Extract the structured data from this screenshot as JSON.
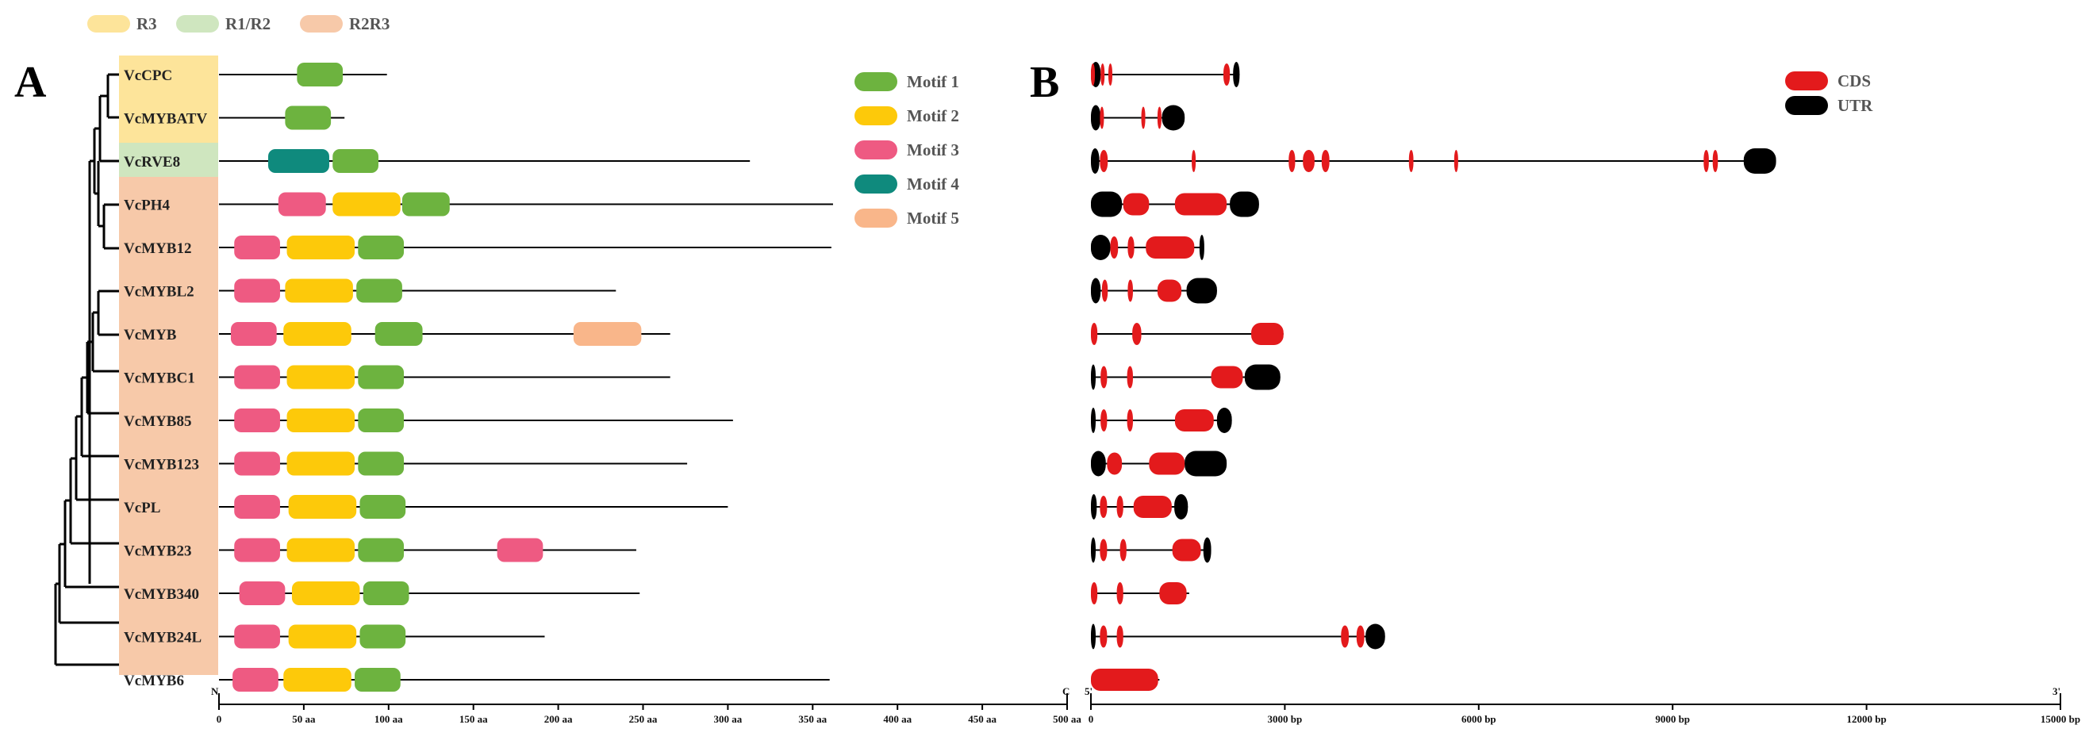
{
  "group_legend": [
    {
      "label": "R3",
      "color": "#fde49a"
    },
    {
      "label": "R1/R2",
      "color": "#cfe6bf"
    },
    {
      "label": "R2R3",
      "color": "#f7c9a9"
    }
  ],
  "panel_a_label": "A",
  "panel_b_label": "B",
  "motif_legend": [
    {
      "label": "Motif 1",
      "color": "#6db33f"
    },
    {
      "label": "Motif 2",
      "color": "#fdc90a"
    },
    {
      "label": "Motif 3",
      "color": "#ee5a82"
    },
    {
      "label": "Motif 4",
      "color": "#0f8a7d"
    },
    {
      "label": "Motif 5",
      "color": "#f9b68a"
    }
  ],
  "gene_legend": [
    {
      "label": "CDS",
      "color": "#e31a1c"
    },
    {
      "label": "UTR",
      "color": "#000000"
    }
  ],
  "protein_axis": {
    "start_label": "N",
    "end_label": "C",
    "max_aa": 500,
    "ticks": [
      "0",
      "50 aa",
      "100 aa",
      "150 aa",
      "200 aa",
      "250 aa",
      "300 aa",
      "350 aa",
      "400 aa",
      "450 aa",
      "500 aa"
    ]
  },
  "gene_axis": {
    "start_label": "5'",
    "end_label": "3'",
    "max_bp": 15000,
    "ticks": [
      "0",
      "3000 bp",
      "6000 bp",
      "9000 bp",
      "12000 bp",
      "15000 bp"
    ]
  },
  "colors": {
    "motif1": "#6db33f",
    "motif2": "#fdc90a",
    "motif3": "#ee5a82",
    "motif4": "#0f8a7d",
    "motif5": "#f9b68a",
    "cds": "#e31a1c",
    "utr": "#000000"
  },
  "genes": [
    {
      "name": "VcCPC",
      "group": "R3",
      "length": 99,
      "motifs": [
        {
          "m": 1,
          "s": 46,
          "e": 73
        }
      ],
      "structure": {
        "length": 2300,
        "cds": [
          [
            0,
            60
          ],
          [
            150,
            200
          ],
          [
            270,
            320
          ],
          [
            2050,
            2150
          ]
        ],
        "utr": [
          [
            0,
            150
          ],
          [
            2200,
            2300
          ]
        ]
      }
    },
    {
      "name": "VcMYBATV",
      "group": "R3",
      "length": 74,
      "motifs": [
        {
          "m": 1,
          "s": 39,
          "e": 66
        }
      ],
      "structure": {
        "length": 1450,
        "cds": [
          [
            140,
            170
          ],
          [
            780,
            830
          ],
          [
            1030,
            1070
          ]
        ],
        "utr": [
          [
            0,
            150
          ],
          [
            1100,
            1450
          ]
        ]
      }
    },
    {
      "name": "VcRVE8",
      "group": "R1/R2",
      "length": 313,
      "motifs": [
        {
          "m": 4,
          "s": 29,
          "e": 65
        },
        {
          "m": 1,
          "s": 67,
          "e": 94
        }
      ],
      "structure": {
        "length": 10600,
        "cds": [
          [
            140,
            260
          ],
          [
            1560,
            1610
          ],
          [
            3060,
            3160
          ],
          [
            3280,
            3460
          ],
          [
            3570,
            3690
          ],
          [
            4920,
            4990
          ],
          [
            5620,
            5670
          ],
          [
            9480,
            9560
          ],
          [
            9620,
            9700
          ]
        ],
        "utr": [
          [
            0,
            130
          ],
          [
            10100,
            10600
          ]
        ]
      }
    },
    {
      "name": "VcPH4",
      "group": "R2R3",
      "length": 362,
      "motifs": [
        {
          "m": 3,
          "s": 35,
          "e": 63
        },
        {
          "m": 2,
          "s": 67,
          "e": 107
        },
        {
          "m": 1,
          "s": 108,
          "e": 136
        }
      ],
      "structure": {
        "length": 2600,
        "cds": [
          [
            500,
            900
          ],
          [
            1300,
            2100
          ]
        ],
        "utr": [
          [
            0,
            480
          ],
          [
            2150,
            2600
          ]
        ]
      }
    },
    {
      "name": "VcMYB12",
      "group": "R2R3",
      "length": 361,
      "motifs": [
        {
          "m": 3,
          "s": 9,
          "e": 36
        },
        {
          "m": 2,
          "s": 40,
          "e": 80
        },
        {
          "m": 1,
          "s": 82,
          "e": 109
        }
      ],
      "structure": {
        "length": 1730,
        "cds": [
          [
            300,
            420
          ],
          [
            570,
            670
          ],
          [
            850,
            1600
          ]
        ],
        "utr": [
          [
            0,
            300
          ],
          [
            1680,
            1730
          ]
        ]
      }
    },
    {
      "name": "VcMYBL2",
      "group": "R2R3",
      "length": 234,
      "motifs": [
        {
          "m": 3,
          "s": 9,
          "e": 36
        },
        {
          "m": 2,
          "s": 39,
          "e": 79
        },
        {
          "m": 1,
          "s": 81,
          "e": 108
        }
      ],
      "structure": {
        "length": 1950,
        "cds": [
          [
            170,
            260
          ],
          [
            570,
            650
          ],
          [
            1030,
            1400
          ]
        ],
        "utr": [
          [
            0,
            150
          ],
          [
            1480,
            1950
          ]
        ]
      }
    },
    {
      "name": "VcMYB",
      "group": "R2R3",
      "length": 266,
      "motifs": [
        {
          "m": 3,
          "s": 7,
          "e": 34
        },
        {
          "m": 2,
          "s": 38,
          "e": 78
        },
        {
          "m": 1,
          "s": 92,
          "e": 120
        },
        {
          "m": 5,
          "s": 209,
          "e": 249
        }
      ],
      "structure": {
        "length": 2980,
        "cds": [
          [
            0,
            100
          ],
          [
            640,
            780
          ],
          [
            2480,
            2980
          ]
        ],
        "utr": []
      }
    },
    {
      "name": "VcMYBC1",
      "group": "R2R3",
      "length": 266,
      "motifs": [
        {
          "m": 3,
          "s": 9,
          "e": 36
        },
        {
          "m": 2,
          "s": 40,
          "e": 80
        },
        {
          "m": 1,
          "s": 82,
          "e": 109
        }
      ],
      "structure": {
        "length": 2930,
        "cds": [
          [
            150,
            250
          ],
          [
            560,
            650
          ],
          [
            1860,
            2350
          ]
        ],
        "utr": [
          [
            0,
            60
          ],
          [
            2380,
            2930
          ]
        ]
      }
    },
    {
      "name": "VcMYB85",
      "group": "R2R3",
      "length": 303,
      "motifs": [
        {
          "m": 3,
          "s": 9,
          "e": 36
        },
        {
          "m": 2,
          "s": 40,
          "e": 80
        },
        {
          "m": 1,
          "s": 82,
          "e": 109
        }
      ],
      "structure": {
        "length": 2180,
        "cds": [
          [
            150,
            250
          ],
          [
            560,
            650
          ],
          [
            1300,
            1900
          ]
        ],
        "utr": [
          [
            0,
            60
          ],
          [
            1950,
            2180
          ]
        ]
      }
    },
    {
      "name": "VcMYB123",
      "group": "R2R3",
      "length": 276,
      "motifs": [
        {
          "m": 3,
          "s": 9,
          "e": 36
        },
        {
          "m": 2,
          "s": 40,
          "e": 80
        },
        {
          "m": 1,
          "s": 82,
          "e": 109
        }
      ],
      "structure": {
        "length": 2100,
        "cds": [
          [
            250,
            480
          ],
          [
            900,
            1450
          ]
        ],
        "utr": [
          [
            0,
            230
          ],
          [
            1450,
            2100
          ]
        ]
      }
    },
    {
      "name": "VcPL",
      "group": "R2R3",
      "length": 300,
      "motifs": [
        {
          "m": 3,
          "s": 9,
          "e": 36
        },
        {
          "m": 2,
          "s": 41,
          "e": 81
        },
        {
          "m": 1,
          "s": 83,
          "e": 110
        }
      ],
      "structure": {
        "length": 1500,
        "cds": [
          [
            140,
            250
          ],
          [
            400,
            500
          ],
          [
            660,
            1250
          ]
        ],
        "utr": [
          [
            0,
            90
          ],
          [
            1290,
            1500
          ]
        ]
      }
    },
    {
      "name": "VcMYB23",
      "group": "R2R3",
      "length": 246,
      "motifs": [
        {
          "m": 3,
          "s": 9,
          "e": 36
        },
        {
          "m": 2,
          "s": 40,
          "e": 80
        },
        {
          "m": 1,
          "s": 82,
          "e": 109
        },
        {
          "m": 3,
          "s": 164,
          "e": 191
        }
      ],
      "structure": {
        "length": 1860,
        "cds": [
          [
            140,
            250
          ],
          [
            450,
            550
          ],
          [
            1260,
            1700
          ]
        ],
        "utr": [
          [
            0,
            60
          ],
          [
            1740,
            1860
          ]
        ]
      }
    },
    {
      "name": "VcMYB340",
      "group": "R2R3",
      "length": 248,
      "motifs": [
        {
          "m": 3,
          "s": 12,
          "e": 39
        },
        {
          "m": 2,
          "s": 43,
          "e": 83
        },
        {
          "m": 1,
          "s": 85,
          "e": 112
        }
      ],
      "structure": {
        "length": 1520,
        "cds": [
          [
            0,
            100
          ],
          [
            400,
            500
          ],
          [
            1060,
            1480
          ]
        ],
        "utr": []
      }
    },
    {
      "name": "VcMYB24L",
      "group": "R2R3",
      "length": 192,
      "motifs": [
        {
          "m": 3,
          "s": 9,
          "e": 36
        },
        {
          "m": 2,
          "s": 41,
          "e": 81
        },
        {
          "m": 1,
          "s": 83,
          "e": 110
        }
      ],
      "structure": {
        "length": 4550,
        "cds": [
          [
            140,
            250
          ],
          [
            400,
            500
          ],
          [
            3870,
            3990
          ],
          [
            4110,
            4230
          ]
        ],
        "utr": [
          [
            0,
            60
          ],
          [
            4250,
            4550
          ]
        ]
      }
    },
    {
      "name": "VcMYB6",
      "group": "R2R3",
      "length": 360,
      "motifs": [
        {
          "m": 3,
          "s": 8,
          "e": 35
        },
        {
          "m": 2,
          "s": 38,
          "e": 78
        },
        {
          "m": 1,
          "s": 80,
          "e": 107
        }
      ],
      "structure": {
        "length": 1060,
        "cds": [
          [
            0,
            1040
          ]
        ],
        "utr": []
      }
    }
  ]
}
